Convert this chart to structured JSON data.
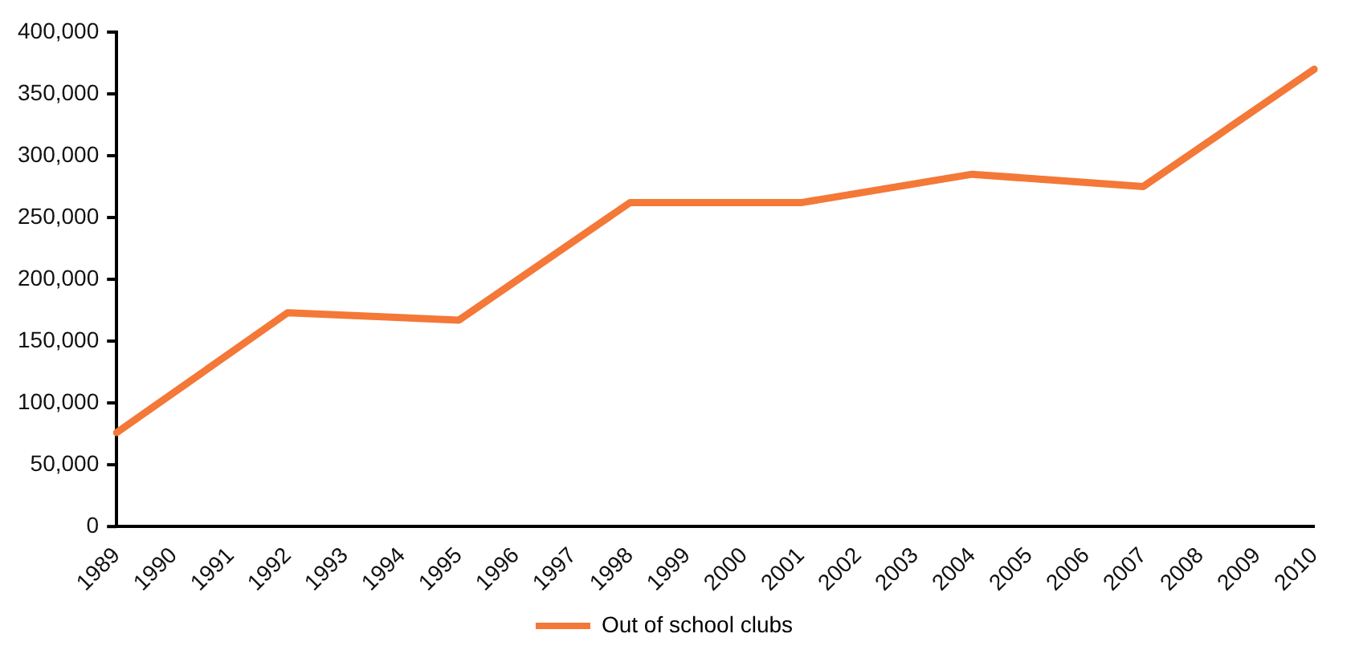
{
  "chart_data": {
    "type": "line",
    "categories": [
      "1989",
      "1990",
      "1991",
      "1992",
      "1993",
      "1994",
      "1995",
      "1996",
      "1997",
      "1998",
      "1999",
      "2000",
      "2001",
      "2002",
      "2003",
      "2004",
      "2005",
      "2006",
      "2007",
      "2008",
      "2009",
      "2010"
    ],
    "series": [
      {
        "name": "Out of school clubs",
        "color": "#f47837",
        "values": [
          76000,
          null,
          null,
          173000,
          null,
          null,
          167000,
          null,
          null,
          262000,
          null,
          null,
          262000,
          null,
          null,
          285000,
          null,
          null,
          275000,
          null,
          null,
          370000
        ]
      }
    ],
    "ylim": [
      0,
      400000
    ],
    "yticks": [
      0,
      {
        "value": 50000,
        "label": "50,000"
      },
      {
        "value": 100000,
        "label": "100,000"
      },
      {
        "value": 150000,
        "label": "150,000"
      },
      {
        "value": 200000,
        "label": "200,000"
      },
      {
        "value": 250000,
        "label": "250,000"
      },
      {
        "value": 300000,
        "label": "300,000"
      },
      {
        "value": 350000,
        "label": "350,000"
      },
      {
        "value": 400000,
        "label": "400,000"
      }
    ],
    "grid": false,
    "legend": "bottom",
    "marker": "none",
    "line_style": "solid"
  }
}
